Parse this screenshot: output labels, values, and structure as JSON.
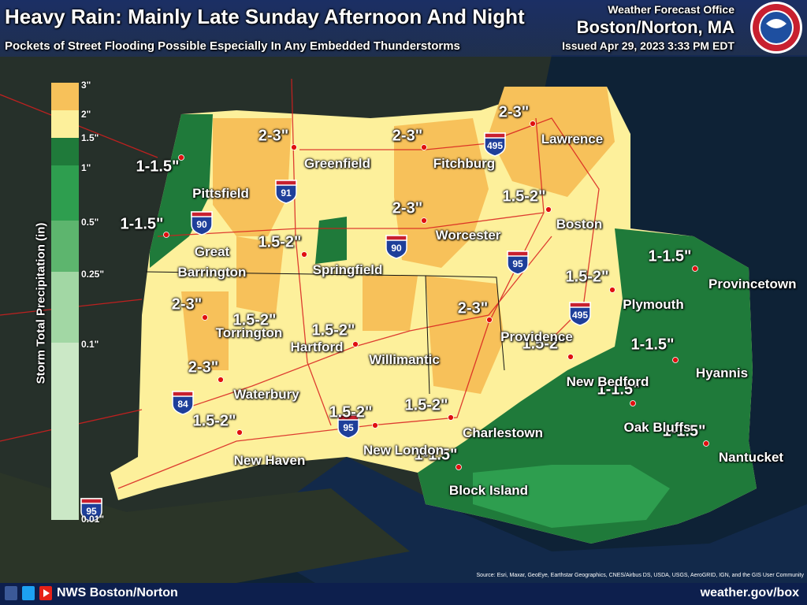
{
  "header": {
    "title": "Heavy Rain: Mainly Late Sunday Afternoon And Night",
    "subtitle": "Pockets of Street Flooding Possible Especially In Any Embedded Thunderstorms",
    "office": "Weather Forecast Office",
    "office_name": "Boston/Norton, MA",
    "issued": "Issued Apr 29, 2023 3:33 PM EDT"
  },
  "legend": {
    "title": "Storm Total Precipitation (in)",
    "labels": [
      "3\"",
      "2\"",
      "1.5\"",
      "1\"",
      "0.5\"",
      "0.25\"",
      "0.1\"",
      "0.01\""
    ]
  },
  "amounts": [
    "2-3\"",
    "2-3\"",
    "2-3\"",
    "1-1.5\"",
    "1-1.5\"",
    "2-3\"",
    "1.5-2\"",
    "1.5-2\"",
    "1-1.5\"",
    "1.5-2\"",
    "2-3\"",
    "2-3\"",
    "1.5-2\"",
    "1.5-2\"",
    "1.5-2\"",
    "1-1.5\"",
    "2-3\"",
    "1-1.5\"",
    "1.5-2\"",
    "1.5-2\"",
    "1.5-2\"",
    "1-1.5\"",
    "1-1.5\""
  ],
  "cities": [
    "Lawrence",
    "Greenfield",
    "Fitchburg",
    "Pittsfield",
    "Boston",
    "Worcester",
    "Great Barrington",
    "Springfield",
    "Provincetown",
    "Plymouth",
    "Torrington",
    "Hartford",
    "Willimantic",
    "Providence",
    "Hyannis",
    "New Bedford",
    "Waterbury",
    "Oak Bluffs",
    "Charlestown",
    "New London",
    "New Haven",
    "Nantucket",
    "Block Island"
  ],
  "highways": [
    "495",
    "91",
    "90",
    "90",
    "95",
    "495",
    "84",
    "95",
    "95"
  ],
  "source": "Source: Esri, Maxar, GeoEye, Earthstar Geographics, CNES/Airbus DS, USDA, USGS, AeroGRID, IGN, and the GIS User Community",
  "footer": {
    "social": "NWS Boston/Norton",
    "url": "weather.gov/box"
  }
}
